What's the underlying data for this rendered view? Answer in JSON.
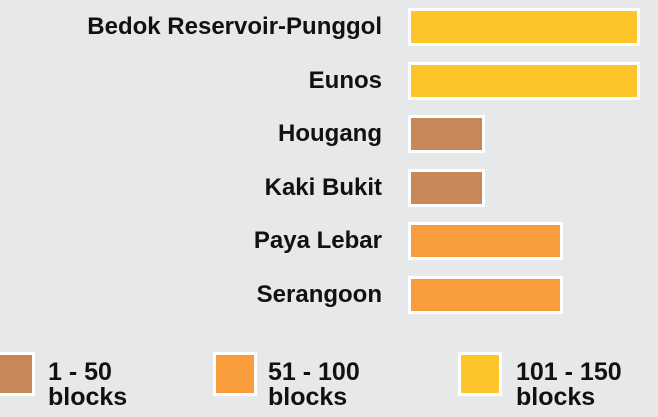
{
  "chart_data": {
    "type": "bar",
    "orientation": "horizontal",
    "categories": [
      "Bedok Reservoir-Punggol",
      "Eunos",
      "Hougang",
      "Kaki Bukit",
      "Paya Lebar",
      "Serangoon"
    ],
    "values": [
      150,
      150,
      50,
      50,
      100,
      100
    ],
    "colors": [
      "#fec52a",
      "#fec52a",
      "#c8875a",
      "#c8875a",
      "#f99d3c",
      "#f99d3c"
    ],
    "xlim": [
      0,
      150
    ],
    "legend": [
      {
        "label": "1 - 50 blocks",
        "color": "#c8875a"
      },
      {
        "label": "51 - 100 blocks",
        "color": "#f99d3c"
      },
      {
        "label": "101 - 150 blocks",
        "color": "#fec52a"
      }
    ]
  }
}
